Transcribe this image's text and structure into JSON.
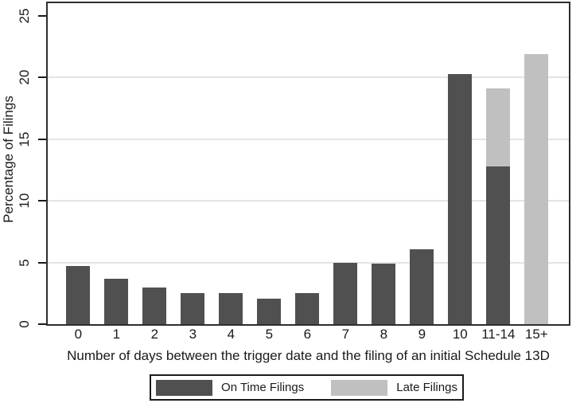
{
  "chart_data": {
    "type": "bar",
    "stacked": true,
    "title": "",
    "xlabel": "Number of days between the trigger date and the filing of an initial Schedule 13D",
    "ylabel": "Percentage of Filings",
    "categories": [
      "0",
      "1",
      "2",
      "3",
      "4",
      "5",
      "6",
      "7",
      "8",
      "9",
      "10",
      "11-14",
      "15+"
    ],
    "series": [
      {
        "name": "On Time Filings",
        "color": "#505050",
        "values": [
          4.7,
          3.7,
          3.0,
          2.5,
          2.5,
          2.1,
          2.5,
          5.0,
          4.9,
          6.1,
          20.3,
          12.8,
          0
        ]
      },
      {
        "name": "Late Filings",
        "color": "#c0c0c0",
        "values": [
          0,
          0,
          0,
          0,
          0,
          0,
          0,
          0,
          0,
          0,
          0,
          6.3,
          21.9
        ]
      }
    ],
    "yticks": [
      0,
      5,
      10,
      15,
      20,
      25
    ],
    "grid_values": [
      5,
      10,
      15,
      20
    ],
    "ylim": [
      0,
      26
    ],
    "grid": "horizontal",
    "legend_position": "bottom-center"
  },
  "colors": {
    "on_time": "#505050",
    "late": "#c0c0c0",
    "gridline": "#e4e4e4",
    "axis": "#2e2e2e",
    "text": "#1a1a1a",
    "background": "#ffffff"
  }
}
